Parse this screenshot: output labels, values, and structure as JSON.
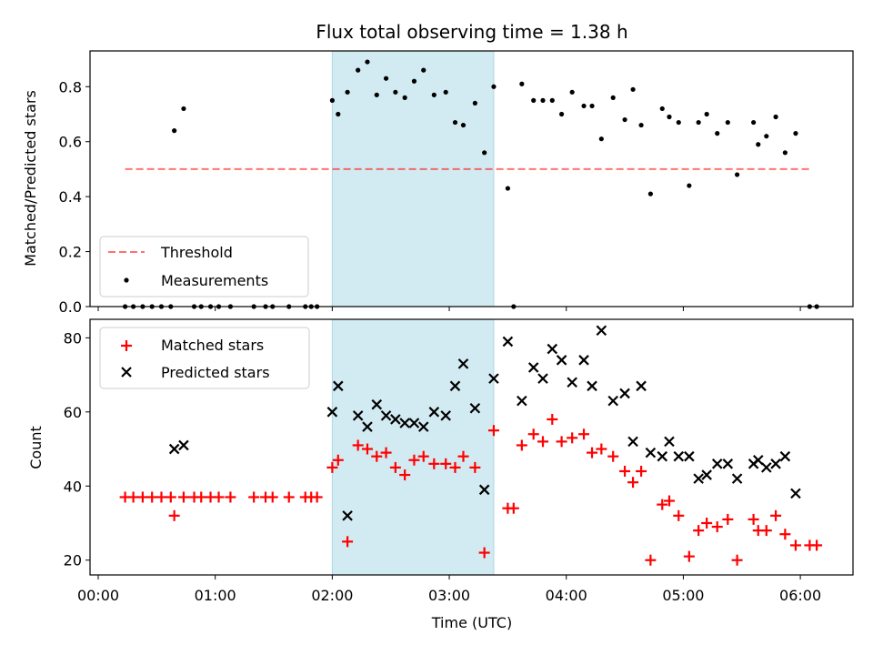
{
  "chart_data": {
    "title": "Flux total observing time = 1.38 h",
    "shaded_interval": [
      2.0,
      3.38
    ],
    "shade_color": "#add8e6",
    "xlabel": "Time (UTC)",
    "x_ticks": [
      {
        "value": 0,
        "label": "00:00"
      },
      {
        "value": 1,
        "label": "01:00"
      },
      {
        "value": 2,
        "label": "02:00"
      },
      {
        "value": 3,
        "label": "03:00"
      },
      {
        "value": 4,
        "label": "04:00"
      },
      {
        "value": 5,
        "label": "05:00"
      },
      {
        "value": 6,
        "label": "06:00"
      }
    ],
    "xlim": [
      -0.07,
      6.45
    ],
    "panels": [
      {
        "type": "scatter",
        "ylabel": "Matched/Predicted stars",
        "ylim": [
          0,
          0.93
        ],
        "y_ticks": [
          0.0,
          0.2,
          0.4,
          0.6,
          0.8
        ],
        "y_tick_labels": [
          "0.0",
          "0.2",
          "0.4",
          "0.6",
          "0.8"
        ],
        "threshold": {
          "value": 0.5,
          "x_range": [
            0.23,
            6.1
          ],
          "label": "Threshold",
          "color": "#ff0000"
        },
        "series": [
          {
            "name": "Measurements",
            "color": "#000000",
            "x": [
              0.23,
              0.3,
              0.38,
              0.46,
              0.54,
              0.62,
              0.65,
              0.73,
              0.82,
              0.88,
              0.96,
              1.03,
              1.13,
              1.33,
              1.43,
              1.49,
              1.63,
              1.77,
              1.82,
              1.87,
              2.0,
              2.05,
              2.13,
              2.22,
              2.3,
              2.38,
              2.46,
              2.54,
              2.62,
              2.7,
              2.78,
              2.87,
              2.97,
              3.05,
              3.12,
              3.22,
              3.3,
              3.38,
              3.5,
              3.55,
              3.62,
              3.72,
              3.8,
              3.88,
              3.96,
              4.05,
              4.15,
              4.22,
              4.3,
              4.4,
              4.5,
              4.57,
              4.64,
              4.72,
              4.82,
              4.88,
              4.96,
              5.05,
              5.13,
              5.2,
              5.29,
              5.38,
              5.46,
              5.6,
              5.64,
              5.71,
              5.79,
              5.87,
              5.96,
              6.08,
              6.14
            ],
            "y": [
              0,
              0,
              0,
              0,
              0,
              0,
              0.64,
              0.72,
              0,
              0,
              0,
              0,
              0,
              0,
              0,
              0,
              0,
              0,
              0,
              0,
              0.75,
              0.7,
              0.78,
              0.86,
              0.89,
              0.77,
              0.83,
              0.78,
              0.76,
              0.82,
              0.86,
              0.77,
              0.78,
              0.67,
              0.66,
              0.74,
              0.56,
              0.8,
              0.43,
              0,
              0.81,
              0.75,
              0.75,
              0.75,
              0.7,
              0.78,
              0.73,
              0.73,
              0.61,
              0.76,
              0.68,
              0.79,
              0.66,
              0.41,
              0.72,
              0.69,
              0.67,
              0.44,
              0.67,
              0.7,
              0.63,
              0.67,
              0.48,
              0.67,
              0.59,
              0.62,
              0.69,
              0.56,
              0.63,
              0,
              0
            ]
          }
        ],
        "legend": [
          "Threshold",
          "Measurements"
        ],
        "legend_position": "lower-left"
      },
      {
        "type": "scatter",
        "ylabel": "Count",
        "ylim": [
          16,
          85
        ],
        "y_ticks": [
          20,
          40,
          60,
          80
        ],
        "y_tick_labels": [
          "20",
          "40",
          "60",
          "80"
        ],
        "series": [
          {
            "name": "Matched stars",
            "marker": "plus",
            "color": "#ff0000",
            "x": [
              0.23,
              0.3,
              0.38,
              0.46,
              0.54,
              0.62,
              0.65,
              0.73,
              0.82,
              0.88,
              0.96,
              1.03,
              1.13,
              1.33,
              1.43,
              1.49,
              1.63,
              1.77,
              1.82,
              1.87,
              2.0,
              2.05,
              2.13,
              2.22,
              2.3,
              2.38,
              2.46,
              2.54,
              2.62,
              2.7,
              2.78,
              2.87,
              2.97,
              3.05,
              3.12,
              3.22,
              3.3,
              3.38,
              3.5,
              3.55,
              3.62,
              3.72,
              3.8,
              3.88,
              3.96,
              4.05,
              4.15,
              4.22,
              4.3,
              4.4,
              4.5,
              4.57,
              4.64,
              4.72,
              4.82,
              4.88,
              4.96,
              5.05,
              5.13,
              5.2,
              5.29,
              5.38,
              5.46,
              5.6,
              5.64,
              5.71,
              5.79,
              5.87,
              5.96,
              6.08,
              6.14
            ],
            "y": [
              37,
              37,
              37,
              37,
              37,
              37,
              32,
              37,
              37,
              37,
              37,
              37,
              37,
              37,
              37,
              37,
              37,
              37,
              37,
              37,
              45,
              47,
              25,
              51,
              50,
              48,
              49,
              45,
              43,
              47,
              48,
              46,
              46,
              45,
              48,
              45,
              22,
              55,
              34,
              34,
              51,
              54,
              52,
              58,
              52,
              53,
              54,
              49,
              50,
              48,
              44,
              41,
              44,
              20,
              35,
              36,
              32,
              21,
              28,
              30,
              29,
              31,
              20,
              31,
              28,
              28,
              32,
              27,
              24,
              24,
              24
            ]
          },
          {
            "name": "Predicted stars",
            "marker": "x",
            "color": "#000000",
            "x": [
              0.65,
              0.73,
              2.0,
              2.05,
              2.13,
              2.22,
              2.3,
              2.38,
              2.46,
              2.54,
              2.62,
              2.7,
              2.78,
              2.87,
              2.97,
              3.05,
              3.12,
              3.22,
              3.3,
              3.38,
              3.5,
              3.62,
              3.72,
              3.8,
              3.88,
              3.96,
              4.05,
              4.15,
              4.22,
              4.3,
              4.4,
              4.5,
              4.57,
              4.64,
              4.72,
              4.82,
              4.88,
              4.96,
              5.05,
              5.13,
              5.2,
              5.29,
              5.38,
              5.46,
              5.6,
              5.64,
              5.71,
              5.79,
              5.87,
              5.96
            ],
            "y": [
              50,
              51,
              60,
              67,
              32,
              59,
              56,
              62,
              59,
              58,
              57,
              57,
              56,
              60,
              59,
              67,
              73,
              61,
              39,
              69,
              79,
              63,
              72,
              69,
              77,
              74,
              68,
              74,
              67,
              82,
              63,
              65,
              52,
              67,
              49,
              48,
              52,
              48,
              48,
              42,
              43,
              46,
              46,
              42,
              46,
              47,
              45,
              46,
              48,
              38
            ]
          }
        ],
        "legend": [
          "Matched stars",
          "Predicted stars"
        ],
        "legend_position": "upper-left"
      }
    ]
  }
}
